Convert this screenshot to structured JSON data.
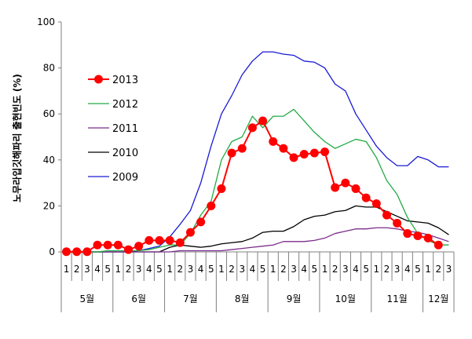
{
  "chart_data": {
    "type": "line",
    "title": "",
    "ylabel": "노무라입깃해파리 출현빈도 (%)",
    "xlabel": "",
    "ylim": [
      0,
      100
    ],
    "yticks": [
      "0",
      "20",
      "40",
      "60",
      "80",
      "100"
    ],
    "weeks": [
      "1",
      "2",
      "3",
      "4",
      "5",
      "1",
      "2",
      "3",
      "4",
      "5",
      "1",
      "2",
      "3",
      "4",
      "5",
      "1",
      "2",
      "3",
      "4",
      "5",
      "1",
      "2",
      "3",
      "4",
      "5",
      "1",
      "2",
      "3",
      "4",
      "5",
      "1",
      "2",
      "3",
      "4",
      "5",
      "1",
      "2",
      "3"
    ],
    "months": [
      {
        "label": "5월",
        "start": 0,
        "count": 5
      },
      {
        "label": "6월",
        "start": 5,
        "count": 5
      },
      {
        "label": "7월",
        "start": 10,
        "count": 5
      },
      {
        "label": "8월",
        "start": 15,
        "count": 5
      },
      {
        "label": "9월",
        "start": 20,
        "count": 5
      },
      {
        "label": "10월",
        "start": 25,
        "count": 5
      },
      {
        "label": "11월",
        "start": 30,
        "count": 5
      },
      {
        "label": "12월",
        "start": 35,
        "count": 3
      }
    ],
    "legend_position": "left-inside",
    "grid": false,
    "series": [
      {
        "name": "2013",
        "color": "#ff0000",
        "marker": "circle",
        "values": [
          0.1,
          0.1,
          0.1,
          3,
          3,
          3,
          1,
          2.5,
          5,
          5,
          5,
          4,
          8.5,
          13,
          20,
          27.5,
          43,
          45,
          54,
          57,
          48,
          45,
          41,
          42.5,
          43,
          43.5,
          28,
          30,
          27.5,
          23.5,
          21,
          16,
          12.5,
          8,
          7,
          6,
          3,
          null
        ]
      },
      {
        "name": "2012",
        "color": "#22aa44",
        "marker": "none",
        "values": [
          0,
          0,
          0,
          0,
          0.5,
          0.5,
          0.5,
          0.5,
          1,
          2,
          3,
          3,
          8,
          16,
          22,
          40,
          48,
          50,
          59,
          54,
          59,
          59,
          62,
          57,
          52,
          48,
          45,
          47,
          49,
          48,
          41,
          31,
          25,
          15,
          8,
          5,
          3,
          3
        ]
      },
      {
        "name": "2011",
        "color": "#7b2c8b",
        "marker": "none",
        "values": [
          0,
          0,
          0,
          0,
          0,
          0,
          0,
          0,
          0,
          0,
          0,
          0.5,
          0.5,
          0.5,
          0.5,
          0.5,
          1,
          1.5,
          2,
          2.5,
          3,
          4.5,
          4.5,
          4.5,
          5,
          6,
          8,
          9,
          10,
          10,
          10.5,
          10.5,
          10,
          9,
          8.5,
          7.5,
          6,
          4.5
        ]
      },
      {
        "name": "2010",
        "color": "#000000",
        "marker": "none",
        "values": [
          0,
          0,
          0,
          0,
          0,
          0,
          0,
          0,
          0,
          0,
          2,
          3,
          2.5,
          2,
          2.5,
          3.5,
          4,
          4.5,
          6,
          8.5,
          9,
          9,
          11,
          14,
          15.5,
          16,
          17.5,
          18,
          20,
          19.5,
          19.5,
          17.5,
          15.5,
          13.5,
          13,
          12.5,
          10.5,
          7.5
        ]
      },
      {
        "name": "2009",
        "color": "#1a1ad6",
        "marker": "none",
        "values": [
          0,
          0,
          0,
          0,
          0,
          0,
          0,
          0.5,
          1.5,
          2.5,
          6.5,
          12,
          18,
          30,
          46,
          60,
          68,
          77,
          83,
          87,
          87,
          86,
          85.5,
          83,
          82.5,
          80,
          73,
          70,
          60,
          53,
          46,
          41,
          37.5,
          37.5,
          41.5,
          40,
          37,
          37
        ]
      }
    ]
  }
}
